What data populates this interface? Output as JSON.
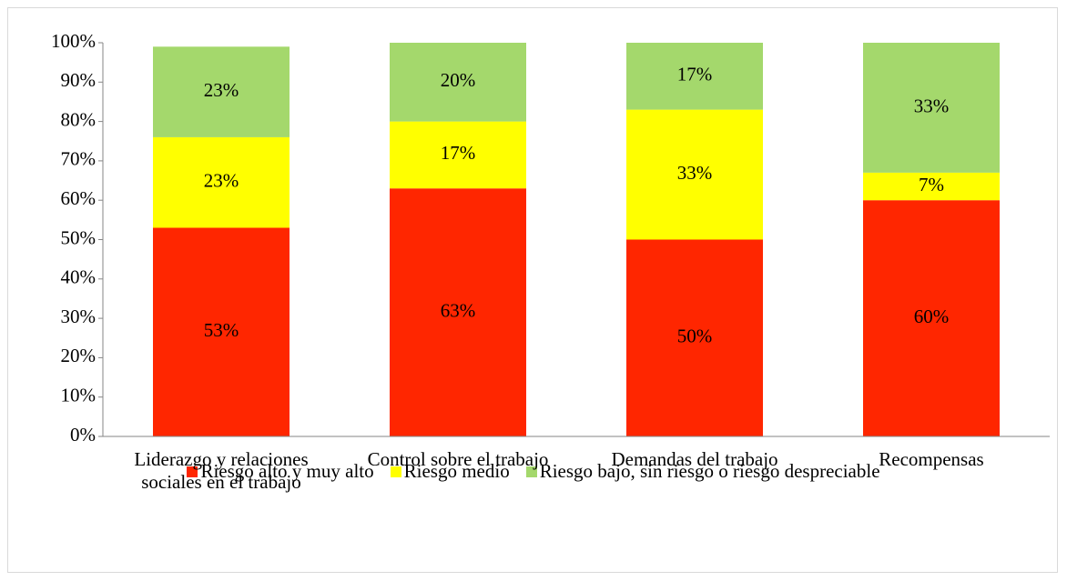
{
  "chart_data": {
    "type": "stacked_bar",
    "categories": [
      "Liderazgo y relaciones sociales en el trabajo",
      "Control sobre el trabajo",
      "Demandas del trabajo",
      "Recompensas"
    ],
    "series": [
      {
        "name": "Riesgo alto y muy alto",
        "color": "#ff2600",
        "values": [
          53,
          63,
          50,
          60
        ],
        "value_labels": [
          "53%",
          "63%",
          "50%",
          "60%"
        ]
      },
      {
        "name": "Riesgo medio",
        "color": "#ffff00",
        "values": [
          23,
          17,
          33,
          7
        ],
        "value_labels": [
          "23%",
          "17%",
          "33%",
          "7%"
        ]
      },
      {
        "name": "Riesgo bajo, sin riesgo o riesgo despreciable",
        "color": "#a4d86c",
        "values": [
          23,
          20,
          17,
          33
        ],
        "value_labels": [
          "23%",
          "20%",
          "17%",
          "33%"
        ]
      }
    ],
    "ylim": [
      0,
      100
    ],
    "yticks": [
      {
        "value": 0,
        "label": "0%"
      },
      {
        "value": 10,
        "label": "10%"
      },
      {
        "value": 20,
        "label": "20%"
      },
      {
        "value": 30,
        "label": "30%"
      },
      {
        "value": 40,
        "label": "40%"
      },
      {
        "value": 50,
        "label": "50%"
      },
      {
        "value": 60,
        "label": "60%"
      },
      {
        "value": 70,
        "label": "70%"
      },
      {
        "value": 80,
        "label": "80%"
      },
      {
        "value": 90,
        "label": "90%"
      },
      {
        "value": 100,
        "label": "100%"
      }
    ],
    "legend": "bottom"
  }
}
